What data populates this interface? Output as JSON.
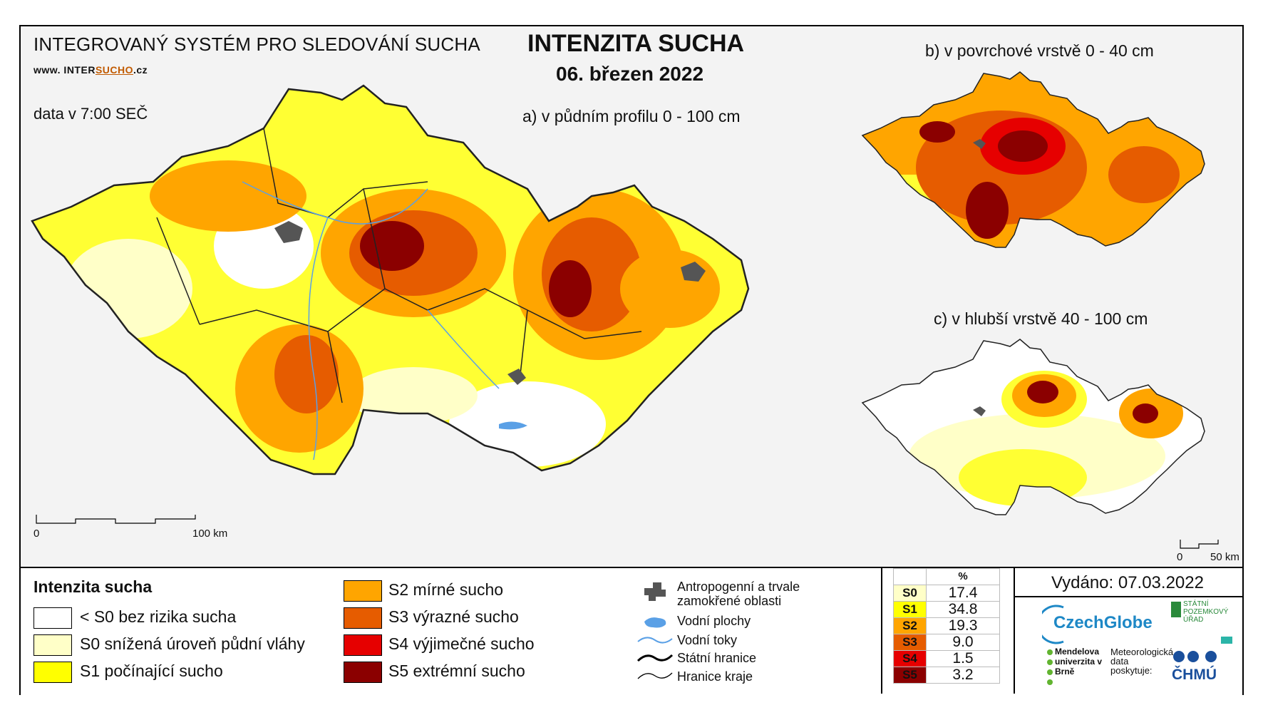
{
  "header": {
    "system_name": "INTEGROVANÝ SYSTÉM PRO SLEDOVÁNÍ SUCHA",
    "website_prefix": "www. INTER",
    "website_mid": "SUCHO",
    "website_suffix": ".cz",
    "data_time": "data v 7:00 SEČ",
    "title": "INTENZITA SUCHA",
    "date": "06. březen 2022"
  },
  "maps": {
    "main_label": "a) v půdním profilu 0 - 100 cm",
    "top_right_label": "b) v povrchové vrstvě 0 - 40 cm",
    "bottom_right_label": "c) v hlubší vrstvě 40 - 100 cm",
    "main_scale": {
      "start": "0",
      "end": "100 km"
    },
    "small_scale": {
      "start": "0",
      "end": "50 km"
    }
  },
  "legend": {
    "title": "Intenzita sucha",
    "classes": [
      {
        "label": "< S0 bez rizika sucha",
        "color": "#ffffff"
      },
      {
        "label": "S0 snížená úroveň půdní vláhy",
        "color": "#ffffc8"
      },
      {
        "label": "S1 počínající sucho",
        "color": "#ffff00"
      },
      {
        "label": "S2 mírné sucho",
        "color": "#ffa500"
      },
      {
        "label": "S3 výrazné sucho",
        "color": "#e65c00"
      },
      {
        "label": "S4 výjimečné sucho",
        "color": "#e60000"
      },
      {
        "label": "S5 extrémní sucho",
        "color": "#8b0000"
      }
    ],
    "other": [
      {
        "label": "Antropogenní a trvale zamokřené oblasti",
        "line1": "Antropogenní a trvale",
        "line2": "zamokřené oblasti",
        "icon": "urban-area-icon"
      },
      {
        "label": "Vodní plochy",
        "icon": "water-body-icon"
      },
      {
        "label": "Vodní toky",
        "icon": "river-icon"
      },
      {
        "label": "Státní hranice",
        "icon": "state-border-icon"
      },
      {
        "label": "Hranice kraje",
        "icon": "region-border-icon"
      }
    ]
  },
  "stats": {
    "unit": "%",
    "rows": [
      {
        "code": "S0",
        "value": "17.4",
        "color": "#ffffc8"
      },
      {
        "code": "S1",
        "value": "34.8",
        "color": "#ffff00"
      },
      {
        "code": "S2",
        "value": "19.3",
        "color": "#ffa500"
      },
      {
        "code": "S3",
        "value": "9.0",
        "color": "#e65c00"
      },
      {
        "code": "S4",
        "value": "1.5",
        "color": "#e60000"
      },
      {
        "code": "S5",
        "value": "3.2",
        "color": "#8b0000"
      }
    ]
  },
  "footer": {
    "issued": "Vydáno: 07.03.2022",
    "logo_czechglobe": "CzechGlobe",
    "logo_spu": "STÁTNÍ POZEMKOVÝ ÚŘAD",
    "logo_mendelu": "Mendelova univerzita v Brně",
    "met_text": "Meteorologická data poskytuje:",
    "logo_chmu": "ČHMÚ"
  }
}
